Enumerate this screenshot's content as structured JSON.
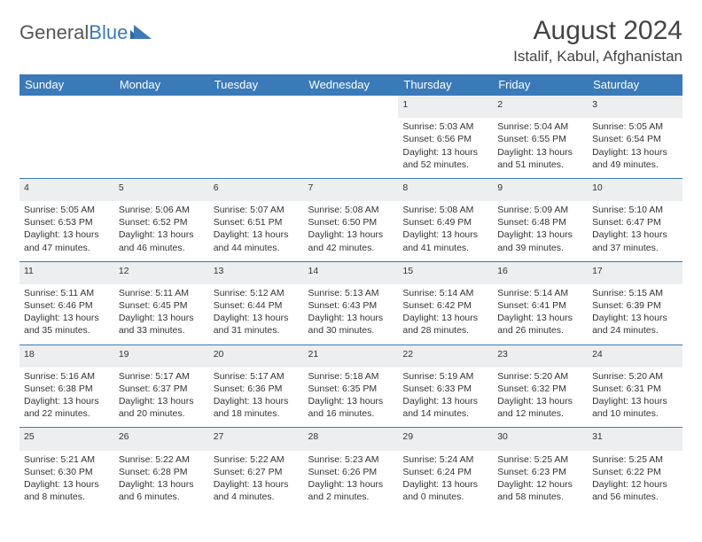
{
  "brand": {
    "part1": "General",
    "part2": "Blue"
  },
  "title": "August 2024",
  "location": "Istalif, Kabul, Afghanistan",
  "colors": {
    "header_bg": "#3a7ab8",
    "header_fg": "#ffffff",
    "daynum_bg": "#eceeef",
    "rule": "#3a7ab8",
    "text": "#333333",
    "background": "#ffffff"
  },
  "day_headers": [
    "Sunday",
    "Monday",
    "Tuesday",
    "Wednesday",
    "Thursday",
    "Friday",
    "Saturday"
  ],
  "weeks": [
    [
      null,
      null,
      null,
      null,
      {
        "n": "1",
        "sr": "5:03 AM",
        "ss": "6:56 PM",
        "dl": "13 hours and 52 minutes."
      },
      {
        "n": "2",
        "sr": "5:04 AM",
        "ss": "6:55 PM",
        "dl": "13 hours and 51 minutes."
      },
      {
        "n": "3",
        "sr": "5:05 AM",
        "ss": "6:54 PM",
        "dl": "13 hours and 49 minutes."
      }
    ],
    [
      {
        "n": "4",
        "sr": "5:05 AM",
        "ss": "6:53 PM",
        "dl": "13 hours and 47 minutes."
      },
      {
        "n": "5",
        "sr": "5:06 AM",
        "ss": "6:52 PM",
        "dl": "13 hours and 46 minutes."
      },
      {
        "n": "6",
        "sr": "5:07 AM",
        "ss": "6:51 PM",
        "dl": "13 hours and 44 minutes."
      },
      {
        "n": "7",
        "sr": "5:08 AM",
        "ss": "6:50 PM",
        "dl": "13 hours and 42 minutes."
      },
      {
        "n": "8",
        "sr": "5:08 AM",
        "ss": "6:49 PM",
        "dl": "13 hours and 41 minutes."
      },
      {
        "n": "9",
        "sr": "5:09 AM",
        "ss": "6:48 PM",
        "dl": "13 hours and 39 minutes."
      },
      {
        "n": "10",
        "sr": "5:10 AM",
        "ss": "6:47 PM",
        "dl": "13 hours and 37 minutes."
      }
    ],
    [
      {
        "n": "11",
        "sr": "5:11 AM",
        "ss": "6:46 PM",
        "dl": "13 hours and 35 minutes."
      },
      {
        "n": "12",
        "sr": "5:11 AM",
        "ss": "6:45 PM",
        "dl": "13 hours and 33 minutes."
      },
      {
        "n": "13",
        "sr": "5:12 AM",
        "ss": "6:44 PM",
        "dl": "13 hours and 31 minutes."
      },
      {
        "n": "14",
        "sr": "5:13 AM",
        "ss": "6:43 PM",
        "dl": "13 hours and 30 minutes."
      },
      {
        "n": "15",
        "sr": "5:14 AM",
        "ss": "6:42 PM",
        "dl": "13 hours and 28 minutes."
      },
      {
        "n": "16",
        "sr": "5:14 AM",
        "ss": "6:41 PM",
        "dl": "13 hours and 26 minutes."
      },
      {
        "n": "17",
        "sr": "5:15 AM",
        "ss": "6:39 PM",
        "dl": "13 hours and 24 minutes."
      }
    ],
    [
      {
        "n": "18",
        "sr": "5:16 AM",
        "ss": "6:38 PM",
        "dl": "13 hours and 22 minutes."
      },
      {
        "n": "19",
        "sr": "5:17 AM",
        "ss": "6:37 PM",
        "dl": "13 hours and 20 minutes."
      },
      {
        "n": "20",
        "sr": "5:17 AM",
        "ss": "6:36 PM",
        "dl": "13 hours and 18 minutes."
      },
      {
        "n": "21",
        "sr": "5:18 AM",
        "ss": "6:35 PM",
        "dl": "13 hours and 16 minutes."
      },
      {
        "n": "22",
        "sr": "5:19 AM",
        "ss": "6:33 PM",
        "dl": "13 hours and 14 minutes."
      },
      {
        "n": "23",
        "sr": "5:20 AM",
        "ss": "6:32 PM",
        "dl": "13 hours and 12 minutes."
      },
      {
        "n": "24",
        "sr": "5:20 AM",
        "ss": "6:31 PM",
        "dl": "13 hours and 10 minutes."
      }
    ],
    [
      {
        "n": "25",
        "sr": "5:21 AM",
        "ss": "6:30 PM",
        "dl": "13 hours and 8 minutes."
      },
      {
        "n": "26",
        "sr": "5:22 AM",
        "ss": "6:28 PM",
        "dl": "13 hours and 6 minutes."
      },
      {
        "n": "27",
        "sr": "5:22 AM",
        "ss": "6:27 PM",
        "dl": "13 hours and 4 minutes."
      },
      {
        "n": "28",
        "sr": "5:23 AM",
        "ss": "6:26 PM",
        "dl": "13 hours and 2 minutes."
      },
      {
        "n": "29",
        "sr": "5:24 AM",
        "ss": "6:24 PM",
        "dl": "13 hours and 0 minutes."
      },
      {
        "n": "30",
        "sr": "5:25 AM",
        "ss": "6:23 PM",
        "dl": "12 hours and 58 minutes."
      },
      {
        "n": "31",
        "sr": "5:25 AM",
        "ss": "6:22 PM",
        "dl": "12 hours and 56 minutes."
      }
    ]
  ],
  "labels": {
    "sunrise": "Sunrise:",
    "sunset": "Sunset:",
    "daylight": "Daylight:"
  }
}
